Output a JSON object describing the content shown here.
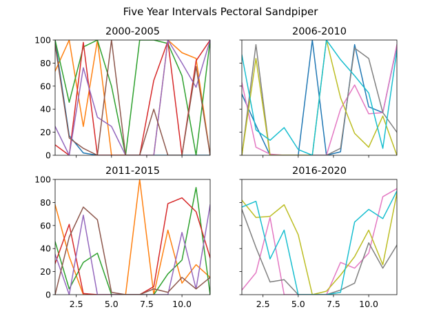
{
  "suptitle": "Five Year Intervals Pectoral Sandpiper",
  "chart_data": [
    {
      "type": "line",
      "title": "2000-2005",
      "xlim": [
        1,
        12
      ],
      "ylim": [
        0,
        100
      ],
      "xticks": [],
      "yticks": [
        "0",
        "20",
        "40",
        "60",
        "80",
        "100"
      ],
      "x": [
        1,
        2,
        3,
        4,
        5,
        6,
        7,
        8,
        9,
        10,
        11,
        12
      ],
      "series": [
        {
          "color": "#1f77b4",
          "values": [
            100,
            17,
            2,
            0,
            0,
            0,
            0,
            0,
            0,
            0,
            0,
            0
          ]
        },
        {
          "color": "#ff7f0e",
          "values": [
            73,
            100,
            25,
            100,
            0,
            0,
            0,
            0,
            100,
            89,
            84,
            0
          ]
        },
        {
          "color": "#2ca02c",
          "values": [
            100,
            46,
            94,
            100,
            60,
            0,
            100,
            100,
            97,
            69,
            0,
            100
          ]
        },
        {
          "color": "#d62728",
          "values": [
            9,
            0,
            98,
            0,
            0,
            0,
            0,
            65,
            99,
            0,
            82,
            100
          ]
        },
        {
          "color": "#9467bd",
          "values": [
            25,
            0,
            76,
            33,
            25,
            0,
            0,
            0,
            100,
            80,
            59,
            100
          ]
        },
        {
          "color": "#8c564b",
          "values": [
            96,
            15,
            6,
            0,
            100,
            0,
            0,
            40,
            0,
            0,
            77,
            0
          ]
        }
      ]
    },
    {
      "type": "line",
      "title": "2006-2010",
      "xlim": [
        1,
        12
      ],
      "ylim": [
        0,
        100
      ],
      "xticks": [],
      "yticks": [],
      "x": [
        1,
        2,
        3,
        4,
        5,
        6,
        7,
        8,
        9,
        10,
        11,
        12
      ],
      "series": [
        {
          "color": "#1f77b4",
          "values": [
            53,
            26,
            0,
            0,
            0,
            100,
            0,
            3,
            96,
            42,
            37,
            95
          ]
        },
        {
          "color": "#e377c2",
          "values": [
            63,
            7,
            1,
            0,
            0,
            0,
            0,
            40,
            61,
            36,
            37,
            96
          ]
        },
        {
          "color": "#7f7f7f",
          "values": [
            0,
            96,
            0,
            0,
            0,
            0,
            0,
            6,
            93,
            84,
            37,
            20
          ]
        },
        {
          "color": "#bcbd22",
          "values": [
            0,
            84,
            0,
            0,
            0,
            0,
            100,
            50,
            19,
            7,
            34,
            0
          ]
        },
        {
          "color": "#17becf",
          "values": [
            87,
            22,
            13,
            24,
            5,
            0,
            100,
            83,
            69,
            54,
            6,
            91
          ]
        }
      ]
    },
    {
      "type": "line",
      "title": "2011-2015",
      "xlim": [
        1,
        12
      ],
      "ylim": [
        0,
        100
      ],
      "xticks": [
        "2.5",
        "5.0",
        "7.5",
        "10.0"
      ],
      "yticks": [
        "0",
        "20",
        "40",
        "60",
        "80",
        "100"
      ],
      "x": [
        1,
        2,
        3,
        4,
        5,
        6,
        7,
        8,
        9,
        10,
        11,
        12
      ],
      "series": [
        {
          "color": "#ff7f0e",
          "values": [
            78,
            33,
            0,
            0,
            0,
            0,
            100,
            0,
            56,
            10,
            26,
            15
          ]
        },
        {
          "color": "#2ca02c",
          "values": [
            46,
            5,
            28,
            36,
            0,
            0,
            0,
            0,
            18,
            30,
            93,
            0
          ]
        },
        {
          "color": "#d62728",
          "values": [
            27,
            61,
            1,
            0,
            0,
            0,
            0,
            7,
            79,
            84,
            72,
            32
          ]
        },
        {
          "color": "#9467bd",
          "values": [
            35,
            0,
            69,
            0,
            0,
            0,
            0,
            0,
            0,
            54,
            5,
            78
          ]
        },
        {
          "color": "#8c564b",
          "values": [
            0,
            50,
            76,
            65,
            2,
            0,
            0,
            5,
            2,
            15,
            5,
            15
          ]
        }
      ]
    },
    {
      "type": "line",
      "title": "2016-2020",
      "xlim": [
        1,
        12
      ],
      "ylim": [
        0,
        100
      ],
      "xticks": [
        "2.5",
        "5.0",
        "7.5",
        "10.0"
      ],
      "yticks": [],
      "x": [
        1,
        2,
        3,
        4,
        5,
        6,
        7,
        8,
        9,
        10,
        11,
        12
      ],
      "series": [
        {
          "color": "#e377c2",
          "values": [
            4,
            19,
            67,
            0,
            0,
            0,
            0,
            28,
            23,
            36,
            85,
            92
          ]
        },
        {
          "color": "#7f7f7f",
          "values": [
            74,
            41,
            11,
            13,
            0,
            0,
            0,
            4,
            10,
            45,
            23,
            43
          ]
        },
        {
          "color": "#bcbd22",
          "values": [
            82,
            67,
            68,
            78,
            52,
            0,
            3,
            17,
            33,
            56,
            26,
            88
          ]
        },
        {
          "color": "#17becf",
          "values": [
            76,
            81,
            31,
            56,
            0,
            0,
            0,
            2,
            63,
            74,
            66,
            90
          ]
        }
      ]
    }
  ]
}
